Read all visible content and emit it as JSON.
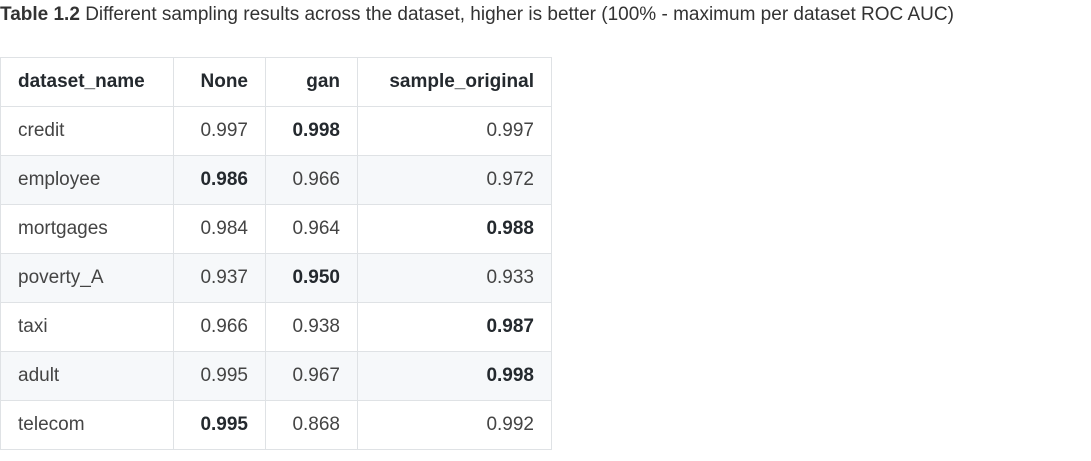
{
  "caption": {
    "label": "Table 1.2",
    "text": "Different sampling results across the dataset, higher is better (100% - maximum per dataset ROC AUC)"
  },
  "table": {
    "columns": [
      "dataset_name",
      "None",
      "gan",
      "sample_original"
    ],
    "rows": [
      [
        "credit",
        "0.997",
        "0.998",
        "0.997"
      ],
      [
        "employee",
        "0.986",
        "0.966",
        "0.972"
      ],
      [
        "mortgages",
        "0.984",
        "0.964",
        "0.988"
      ],
      [
        "poverty_A",
        "0.937",
        "0.950",
        "0.933"
      ],
      [
        "taxi",
        "0.966",
        "0.938",
        "0.987"
      ],
      [
        "adult",
        "0.995",
        "0.967",
        "0.998"
      ],
      [
        "telecom",
        "0.995",
        "0.868",
        "0.992"
      ]
    ],
    "bold_column": [
      2,
      1,
      3,
      2,
      3,
      3,
      1
    ]
  }
}
